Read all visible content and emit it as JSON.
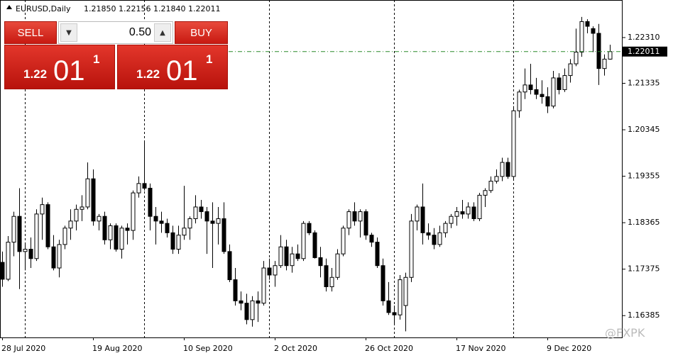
{
  "chart_data": {
    "type": "candlestick",
    "symbol": "EURUSD,Daily",
    "ohlc_header": "1.21850 1.22156 1.21840 1.22011",
    "categories": [
      "28 Jul 2020",
      null,
      null,
      null,
      null,
      null,
      null,
      null,
      null,
      null,
      null,
      null,
      null,
      null,
      null,
      null,
      "19 Aug 2020",
      null,
      null,
      null,
      null,
      null,
      null,
      null,
      null,
      null,
      null,
      null,
      null,
      null,
      null,
      null,
      "10 Sep 2020",
      null,
      null,
      null,
      null,
      null,
      null,
      null,
      null,
      null,
      null,
      null,
      null,
      null,
      null,
      null,
      "2 Oct 2020",
      null,
      null,
      null,
      null,
      null,
      null,
      null,
      null,
      null,
      null,
      null,
      null,
      null,
      null,
      null,
      "26 Oct 2020",
      null,
      null,
      null,
      null,
      null,
      null,
      null,
      null,
      null,
      null,
      null,
      null,
      null,
      null,
      null,
      "17 Nov 2020",
      null,
      null,
      null,
      null,
      null,
      null,
      null,
      null,
      null,
      null,
      null,
      null,
      null,
      null,
      null,
      "9 Dec 2020",
      null,
      null,
      null,
      null,
      null,
      null,
      null,
      null,
      null,
      null,
      null
    ],
    "candles": [
      [
        1.1752,
        1.1775,
        1.17,
        1.1716
      ],
      [
        1.1716,
        1.1808,
        1.1712,
        1.1795
      ],
      [
        1.1795,
        1.186,
        1.1765,
        1.185
      ],
      [
        1.185,
        1.191,
        1.1695,
        1.1775
      ],
      [
        1.1775,
        1.179,
        1.1735,
        1.178
      ],
      [
        1.178,
        1.1805,
        1.174,
        1.176
      ],
      [
        1.176,
        1.1865,
        1.1755,
        1.1855
      ],
      [
        1.1855,
        1.189,
        1.18,
        1.1875
      ],
      [
        1.1875,
        1.188,
        1.178,
        1.1785
      ],
      [
        1.1785,
        1.181,
        1.1735,
        1.174
      ],
      [
        1.174,
        1.18,
        1.172,
        1.179
      ],
      [
        1.179,
        1.183,
        1.178,
        1.1825
      ],
      [
        1.1825,
        1.1865,
        1.18,
        1.184
      ],
      [
        1.184,
        1.1875,
        1.182,
        1.1865
      ],
      [
        1.1865,
        1.1895,
        1.184,
        1.187
      ],
      [
        1.187,
        1.1965,
        1.1865,
        1.193
      ],
      [
        1.193,
        1.195,
        1.183,
        1.184
      ],
      [
        1.184,
        1.1855,
        1.182,
        1.185
      ],
      [
        1.185,
        1.186,
        1.179,
        1.18
      ],
      [
        1.18,
        1.1835,
        1.178,
        1.183
      ],
      [
        1.183,
        1.1835,
        1.1775,
        1.178
      ],
      [
        1.178,
        1.183,
        1.176,
        1.1825
      ],
      [
        1.1825,
        1.1835,
        1.179,
        1.182
      ],
      [
        1.182,
        1.1905,
        1.18,
        1.19
      ],
      [
        1.19,
        1.1935,
        1.189,
        1.192
      ],
      [
        1.192,
        1.2011,
        1.1905,
        1.191
      ],
      [
        1.191,
        1.192,
        1.182,
        1.185
      ],
      [
        1.185,
        1.187,
        1.179,
        1.184
      ],
      [
        1.184,
        1.186,
        1.1815,
        1.1835
      ],
      [
        1.1835,
        1.1845,
        1.1805,
        1.1815
      ],
      [
        1.1815,
        1.183,
        1.177,
        1.178
      ],
      [
        1.178,
        1.183,
        1.177,
        1.181
      ],
      [
        1.181,
        1.1915,
        1.18,
        1.1825
      ],
      [
        1.1825,
        1.185,
        1.18,
        1.1845
      ],
      [
        1.1845,
        1.1895,
        1.1835,
        1.187
      ],
      [
        1.187,
        1.1885,
        1.1845,
        1.186
      ],
      [
        1.186,
        1.187,
        1.177,
        1.184
      ],
      [
        1.184,
        1.188,
        1.174,
        1.1835
      ],
      [
        1.1835,
        1.187,
        1.179,
        1.1845
      ],
      [
        1.1845,
        1.188,
        1.177,
        1.1775
      ],
      [
        1.1775,
        1.179,
        1.171,
        1.1715
      ],
      [
        1.1715,
        1.174,
        1.166,
        1.167
      ],
      [
        1.167,
        1.169,
        1.165,
        1.1665
      ],
      [
        1.1665,
        1.1685,
        1.162,
        1.163
      ],
      [
        1.163,
        1.168,
        1.1615,
        1.167
      ],
      [
        1.167,
        1.169,
        1.1625,
        1.1665
      ],
      [
        1.1665,
        1.1755,
        1.166,
        1.174
      ],
      [
        1.174,
        1.176,
        1.1715,
        1.1725
      ],
      [
        1.1725,
        1.1755,
        1.17,
        1.1745
      ],
      [
        1.1745,
        1.181,
        1.174,
        1.1785
      ],
      [
        1.1785,
        1.18,
        1.1735,
        1.1745
      ],
      [
        1.1745,
        1.1785,
        1.173,
        1.177
      ],
      [
        1.177,
        1.179,
        1.1755,
        1.176
      ],
      [
        1.176,
        1.184,
        1.1755,
        1.1835
      ],
      [
        1.1835,
        1.184,
        1.181,
        1.1815
      ],
      [
        1.1815,
        1.182,
        1.176,
        1.1762
      ],
      [
        1.1762,
        1.1785,
        1.172,
        1.1745
      ],
      [
        1.1745,
        1.176,
        1.169,
        1.17
      ],
      [
        1.17,
        1.174,
        1.169,
        1.172
      ],
      [
        1.172,
        1.178,
        1.1715,
        1.177
      ],
      [
        1.177,
        1.183,
        1.1765,
        1.1825
      ],
      [
        1.1825,
        1.1865,
        1.181,
        1.186
      ],
      [
        1.186,
        1.188,
        1.183,
        1.184
      ],
      [
        1.184,
        1.1865,
        1.1805,
        1.186
      ],
      [
        1.186,
        1.1865,
        1.18,
        1.181
      ],
      [
        1.181,
        1.1815,
        1.1785,
        1.1795
      ],
      [
        1.1795,
        1.1805,
        1.174,
        1.1745
      ],
      [
        1.1745,
        1.176,
        1.166,
        1.167
      ],
      [
        1.167,
        1.171,
        1.164,
        1.1645
      ],
      [
        1.1645,
        1.166,
        1.162,
        1.164
      ],
      [
        1.164,
        1.1725,
        1.163,
        1.1715
      ],
      [
        1.166,
        1.173,
        1.1605,
        1.172
      ],
      [
        1.172,
        1.1855,
        1.171,
        1.184
      ],
      [
        1.184,
        1.1875,
        1.182,
        1.187
      ],
      [
        1.187,
        1.192,
        1.179,
        1.1815
      ],
      [
        1.1815,
        1.1835,
        1.18,
        1.181
      ],
      [
        1.181,
        1.1825,
        1.178,
        1.179
      ],
      [
        1.179,
        1.183,
        1.1785,
        1.1815
      ],
      [
        1.1815,
        1.184,
        1.1805,
        1.1835
      ],
      [
        1.1835,
        1.1855,
        1.1825,
        1.185
      ],
      [
        1.185,
        1.187,
        1.183,
        1.186
      ],
      [
        1.186,
        1.1885,
        1.1845,
        1.1855
      ],
      [
        1.1855,
        1.188,
        1.1845,
        1.187
      ],
      [
        1.187,
        1.188,
        1.184,
        1.1845
      ],
      [
        1.1845,
        1.19,
        1.184,
        1.1895
      ],
      [
        1.1895,
        1.191,
        1.187,
        1.1905
      ],
      [
        1.1905,
        1.1935,
        1.19,
        1.1925
      ],
      [
        1.1925,
        1.195,
        1.192,
        1.1935
      ],
      [
        1.1935,
        1.1975,
        1.1925,
        1.1965
      ],
      [
        1.1965,
        1.1975,
        1.193,
        1.1935
      ],
      [
        1.1935,
        1.2085,
        1.193,
        1.2075
      ],
      [
        1.2075,
        1.212,
        1.206,
        1.2115
      ],
      [
        1.2115,
        1.2165,
        1.21,
        1.213
      ],
      [
        1.213,
        1.2175,
        1.211,
        1.212
      ],
      [
        1.212,
        1.2145,
        1.21,
        1.211
      ],
      [
        1.211,
        1.214,
        1.209,
        1.2105
      ],
      [
        1.2105,
        1.2125,
        1.207,
        1.2085
      ],
      [
        1.2085,
        1.216,
        1.208,
        1.2145
      ],
      [
        1.2145,
        1.2155,
        1.211,
        1.212
      ],
      [
        1.212,
        1.2165,
        1.2115,
        1.215
      ],
      [
        1.215,
        1.2185,
        1.2135,
        1.2175
      ],
      [
        1.2175,
        1.225,
        1.217,
        1.22
      ],
      [
        1.22,
        1.2275,
        1.219,
        1.2265
      ],
      [
        1.2265,
        1.227,
        1.224,
        1.2255
      ],
      [
        1.225,
        1.2255,
        1.22,
        1.224
      ],
      [
        1.224,
        1.226,
        1.213,
        1.2165
      ],
      [
        1.2165,
        1.2195,
        1.215,
        1.2185
      ],
      [
        1.2185,
        1.22156,
        1.2184,
        1.22011
      ]
    ],
    "ylim": [
      1.1592,
      1.2311
    ],
    "yticks": [
      {
        "value": 1.2231,
        "label": "1.22310"
      },
      {
        "value": 1.21335,
        "label": "1.21335"
      },
      {
        "value": 1.20345,
        "label": "1.20345"
      },
      {
        "value": 1.19355,
        "label": "1.19355"
      },
      {
        "value": 1.18365,
        "label": "1.18365"
      },
      {
        "value": 1.17375,
        "label": "1.17375"
      },
      {
        "value": 1.16385,
        "label": "1.16385"
      }
    ],
    "current_price": 1.22011,
    "grid": true
  },
  "trade_panel": {
    "sell": "SELL",
    "buy": "BUY",
    "lots": "0.50",
    "sell_quote": {
      "big": "1.22",
      "pips": "01",
      "point": "1"
    },
    "buy_quote": {
      "big": "1.22",
      "pips": "01",
      "point": "1"
    }
  },
  "watermark": "@FXPK"
}
